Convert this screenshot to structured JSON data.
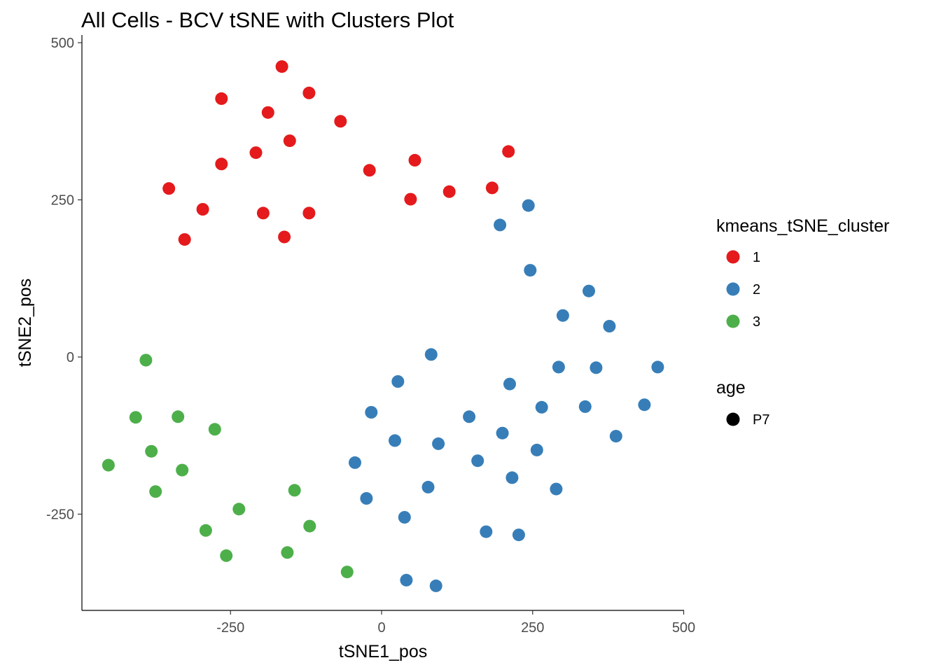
{
  "chart_data": {
    "type": "scatter",
    "title": "All Cells - BCV tSNE with Clusters Plot",
    "xlabel": "tSNE1_pos",
    "ylabel": "tSNE2_pos",
    "xlim": [
      -500,
      500
    ],
    "ylim": [
      -405,
      505
    ],
    "xticks": [
      -250,
      0,
      250,
      500
    ],
    "yticks": [
      500,
      250,
      0,
      -250
    ],
    "grid": false,
    "legend_placement": "right",
    "colors": {
      "1": "#E41A1C",
      "2": "#377EB8",
      "3": "#4DAF4A",
      "shape": "#000000"
    },
    "legend": {
      "color_title": "kmeans_tSNE_cluster",
      "color_entries": [
        "1",
        "2",
        "3"
      ],
      "shape_title": "age",
      "shape_entries": [
        "P7"
      ]
    },
    "series": [
      {
        "name": "1",
        "points": [
          [
            -165,
            462
          ],
          [
            -120,
            420
          ],
          [
            -265,
            411
          ],
          [
            -188,
            389
          ],
          [
            -68,
            375
          ],
          [
            -152,
            344
          ],
          [
            -208,
            325
          ],
          [
            210,
            327
          ],
          [
            -265,
            307
          ],
          [
            55,
            313
          ],
          [
            -20,
            297
          ],
          [
            -352,
            268
          ],
          [
            112,
            263
          ],
          [
            183,
            269
          ],
          [
            48,
            251
          ],
          [
            -296,
            235
          ],
          [
            -196,
            229
          ],
          [
            -120,
            229
          ],
          [
            -326,
            187
          ],
          [
            -161,
            191
          ]
        ]
      },
      {
        "name": "2",
        "points": [
          [
            243,
            241
          ],
          [
            196,
            210
          ],
          [
            246,
            138
          ],
          [
            343,
            105
          ],
          [
            300,
            66
          ],
          [
            377,
            49
          ],
          [
            82,
            4
          ],
          [
            293,
            -16
          ],
          [
            355,
            -17
          ],
          [
            457,
            -16
          ],
          [
            27,
            -39
          ],
          [
            212,
            -43
          ],
          [
            265,
            -80
          ],
          [
            337,
            -79
          ],
          [
            435,
            -76
          ],
          [
            -17,
            -88
          ],
          [
            145,
            -95
          ],
          [
            22,
            -133
          ],
          [
            94,
            -138
          ],
          [
            200,
            -121
          ],
          [
            257,
            -148
          ],
          [
            388,
            -126
          ],
          [
            -44,
            -168
          ],
          [
            159,
            -165
          ],
          [
            77,
            -207
          ],
          [
            216,
            -192
          ],
          [
            289,
            -210
          ],
          [
            -25,
            -225
          ],
          [
            38,
            -255
          ],
          [
            173,
            -278
          ],
          [
            227,
            -283
          ],
          [
            41,
            -355
          ],
          [
            90,
            -364
          ]
        ]
      },
      {
        "name": "3",
        "points": [
          [
            -390,
            -5
          ],
          [
            -407,
            -96
          ],
          [
            -337,
            -95
          ],
          [
            -276,
            -115
          ],
          [
            -381,
            -150
          ],
          [
            -452,
            -172
          ],
          [
            -330,
            -180
          ],
          [
            -374,
            -214
          ],
          [
            -144,
            -212
          ],
          [
            -236,
            -242
          ],
          [
            -291,
            -276
          ],
          [
            -119,
            -269
          ],
          [
            -257,
            -316
          ],
          [
            -156,
            -311
          ],
          [
            -57,
            -342
          ]
        ]
      }
    ]
  }
}
